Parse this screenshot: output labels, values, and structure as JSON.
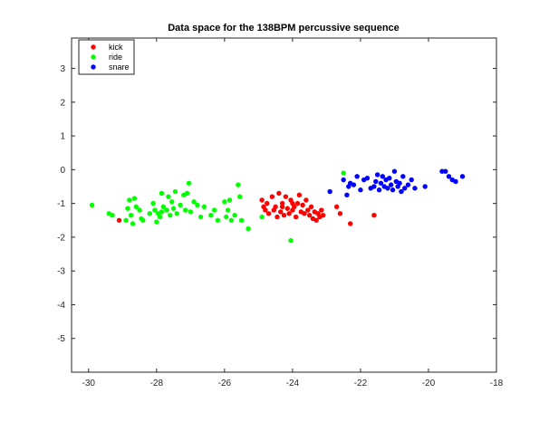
{
  "chart_data": {
    "type": "scatter",
    "title": "Data space for the 138BPM percussive sequence",
    "xlabel": "",
    "ylabel": "",
    "xlim": [
      -30.5,
      -18
    ],
    "ylim": [
      -6,
      3.9
    ],
    "xticks": [
      -30,
      -28,
      -26,
      -24,
      -22,
      -20,
      -18
    ],
    "yticks": [
      3,
      2,
      1,
      0,
      -1,
      -2,
      -3,
      -4,
      -5
    ],
    "grid": true,
    "legend_position": "top-left",
    "series": [
      {
        "name": "kick",
        "color": "#ff0000",
        "points": [
          [
            -29.1,
            -1.5
          ],
          [
            -24.9,
            -0.9
          ],
          [
            -24.85,
            -1.1
          ],
          [
            -24.8,
            -1.2
          ],
          [
            -24.75,
            -1.0
          ],
          [
            -24.7,
            -1.3
          ],
          [
            -24.6,
            -0.8
          ],
          [
            -24.55,
            -1.2
          ],
          [
            -24.5,
            -1.1
          ],
          [
            -24.45,
            -1.4
          ],
          [
            -24.4,
            -0.7
          ],
          [
            -24.35,
            -1.25
          ],
          [
            -24.3,
            -1.0
          ],
          [
            -24.25,
            -1.35
          ],
          [
            -24.2,
            -0.8
          ],
          [
            -24.15,
            -1.15
          ],
          [
            -24.1,
            -1.3
          ],
          [
            -24.05,
            -0.9
          ],
          [
            -24.0,
            -1.2
          ],
          [
            -23.95,
            -1.1
          ],
          [
            -23.9,
            -1.4
          ],
          [
            -23.85,
            -1.0
          ],
          [
            -23.8,
            -0.75
          ],
          [
            -23.75,
            -1.25
          ],
          [
            -23.7,
            -1.05
          ],
          [
            -23.65,
            -1.3
          ],
          [
            -23.6,
            -0.9
          ],
          [
            -23.55,
            -1.2
          ],
          [
            -23.5,
            -1.35
          ],
          [
            -23.45,
            -1.1
          ],
          [
            -23.4,
            -1.45
          ],
          [
            -23.35,
            -1.25
          ],
          [
            -23.3,
            -1.5
          ],
          [
            -23.25,
            -1.3
          ],
          [
            -23.2,
            -1.4
          ],
          [
            -23.15,
            -1.2
          ],
          [
            -23.1,
            -1.35
          ],
          [
            -22.7,
            -1.1
          ],
          [
            -22.6,
            -1.3
          ],
          [
            -22.3,
            -1.6
          ],
          [
            -21.6,
            -1.35
          ],
          [
            -24.0,
            -1.0
          ],
          [
            -24.3,
            -1.1
          ]
        ]
      },
      {
        "name": "ride",
        "color": "#00ff00",
        "points": [
          [
            -29.9,
            -1.05
          ],
          [
            -29.4,
            -1.3
          ],
          [
            -29.3,
            -1.35
          ],
          [
            -28.9,
            -1.5
          ],
          [
            -28.85,
            -1.15
          ],
          [
            -28.8,
            -0.9
          ],
          [
            -28.75,
            -1.35
          ],
          [
            -28.7,
            -1.6
          ],
          [
            -28.65,
            -0.85
          ],
          [
            -28.6,
            -1.1
          ],
          [
            -28.5,
            -1.2
          ],
          [
            -28.45,
            -1.45
          ],
          [
            -28.4,
            -1.5
          ],
          [
            -28.2,
            -1.3
          ],
          [
            -28.1,
            -1.0
          ],
          [
            -28.05,
            -1.2
          ],
          [
            -28.0,
            -1.55
          ],
          [
            -27.95,
            -1.3
          ],
          [
            -27.9,
            -1.4
          ],
          [
            -27.85,
            -0.7
          ],
          [
            -27.8,
            -1.1
          ],
          [
            -27.7,
            -1.2
          ],
          [
            -27.65,
            -0.8
          ],
          [
            -27.6,
            -1.35
          ],
          [
            -27.55,
            -0.95
          ],
          [
            -27.5,
            -1.15
          ],
          [
            -27.45,
            -0.65
          ],
          [
            -27.4,
            -1.3
          ],
          [
            -27.3,
            -1.05
          ],
          [
            -27.2,
            -0.75
          ],
          [
            -27.15,
            -1.2
          ],
          [
            -27.1,
            -0.7
          ],
          [
            -27.05,
            -0.4
          ],
          [
            -27.0,
            -1.25
          ],
          [
            -26.9,
            -0.95
          ],
          [
            -26.8,
            -1.05
          ],
          [
            -26.7,
            -1.4
          ],
          [
            -26.6,
            -1.1
          ],
          [
            -26.4,
            -1.35
          ],
          [
            -26.3,
            -1.2
          ],
          [
            -26.2,
            -1.5
          ],
          [
            -26.0,
            -0.95
          ],
          [
            -25.95,
            -1.4
          ],
          [
            -25.9,
            -1.2
          ],
          [
            -25.85,
            -0.9
          ],
          [
            -25.8,
            -1.5
          ],
          [
            -25.7,
            -1.35
          ],
          [
            -25.6,
            -0.45
          ],
          [
            -25.55,
            -0.8
          ],
          [
            -25.5,
            -1.5
          ],
          [
            -25.3,
            -1.75
          ],
          [
            -24.9,
            -1.4
          ],
          [
            -24.05,
            -2.1
          ],
          [
            -22.5,
            -0.1
          ],
          [
            -27.85,
            -1.25
          ]
        ]
      },
      {
        "name": "snare",
        "color": "#0000ff",
        "points": [
          [
            -22.9,
            -0.65
          ],
          [
            -22.4,
            -0.75
          ],
          [
            -22.35,
            -0.5
          ],
          [
            -22.3,
            -0.4
          ],
          [
            -22.2,
            -0.45
          ],
          [
            -22.1,
            -0.2
          ],
          [
            -22.0,
            -0.6
          ],
          [
            -21.9,
            -0.3
          ],
          [
            -21.8,
            -0.25
          ],
          [
            -21.7,
            -0.55
          ],
          [
            -21.6,
            -0.5
          ],
          [
            -21.55,
            -0.35
          ],
          [
            -21.5,
            -0.15
          ],
          [
            -21.45,
            -0.6
          ],
          [
            -21.4,
            -0.4
          ],
          [
            -21.35,
            -0.2
          ],
          [
            -21.3,
            -0.5
          ],
          [
            -21.25,
            -0.3
          ],
          [
            -21.2,
            -0.55
          ],
          [
            -21.15,
            -0.25
          ],
          [
            -21.1,
            -0.45
          ],
          [
            -21.05,
            -0.6
          ],
          [
            -21.0,
            -0.05
          ],
          [
            -20.95,
            -0.35
          ],
          [
            -20.9,
            -0.5
          ],
          [
            -20.85,
            -0.4
          ],
          [
            -20.8,
            -0.65
          ],
          [
            -20.75,
            -0.2
          ],
          [
            -20.7,
            -0.55
          ],
          [
            -20.6,
            -0.45
          ],
          [
            -20.5,
            -0.3
          ],
          [
            -20.4,
            -0.55
          ],
          [
            -20.1,
            -0.5
          ],
          [
            -19.6,
            -0.05
          ],
          [
            -19.5,
            -0.05
          ],
          [
            -19.4,
            -0.2
          ],
          [
            -19.3,
            -0.3
          ],
          [
            -19.2,
            -0.35
          ],
          [
            -19.0,
            -0.2
          ],
          [
            -22.5,
            -0.3
          ]
        ]
      }
    ]
  }
}
